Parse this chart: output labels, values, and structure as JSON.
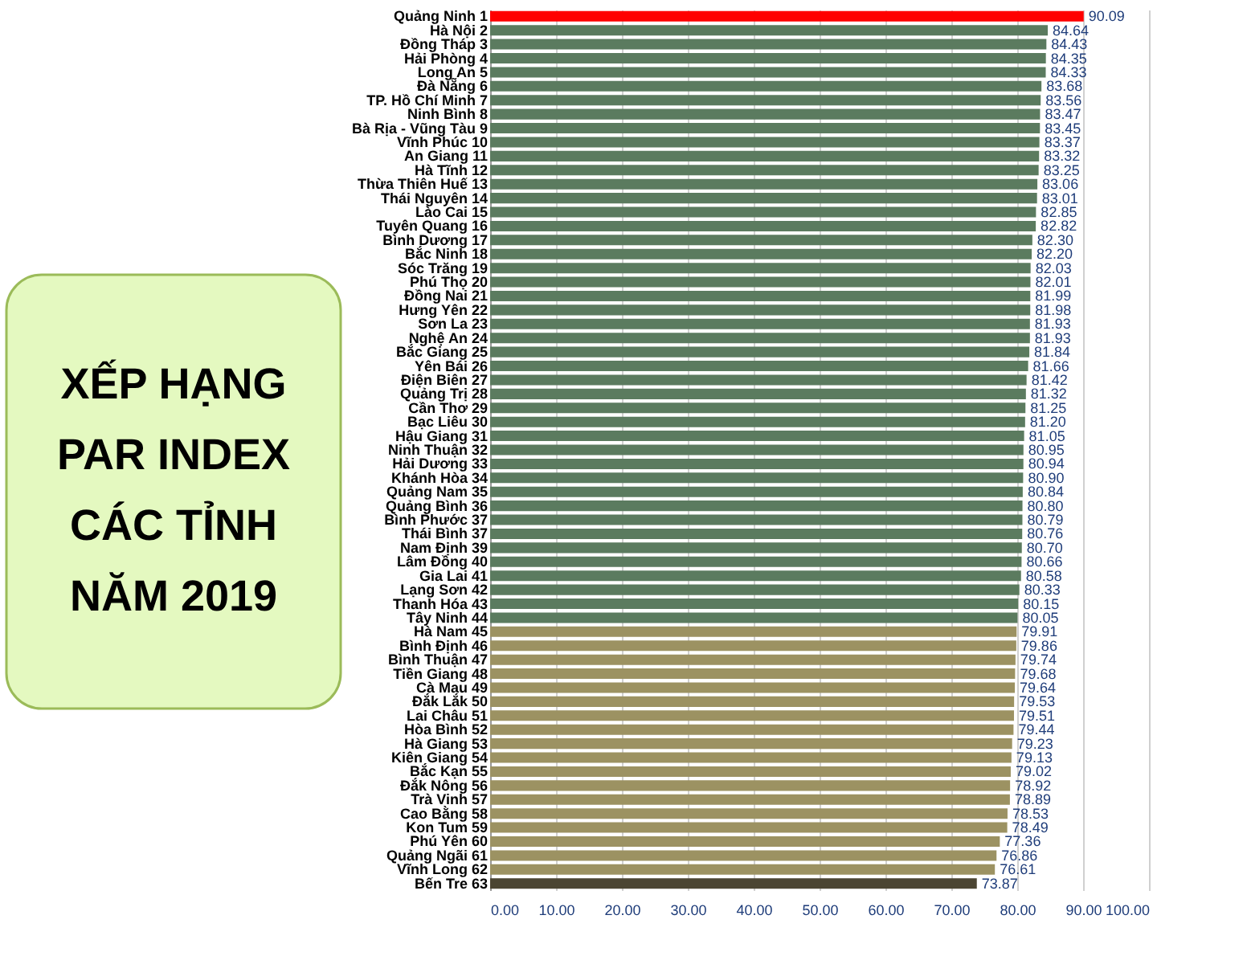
{
  "chart_data": {
    "type": "bar",
    "orientation": "horizontal",
    "title": "XẾP HẠNG\nPAR INDEX\nCÁC TỈNH\nNĂM 2019",
    "categories": [
      "Quảng Ninh 1",
      "Hà Nội 2",
      "Đồng Tháp 3",
      "Hải Phòng 4",
      "Long An 5",
      "Đà Nẵng 6",
      "TP. Hồ Chí Minh 7",
      "Ninh Bình 8",
      "Bà Rịa - Vũng Tàu 9",
      "Vĩnh Phúc 10",
      "An Giang 11",
      "Hà Tĩnh 12",
      "Thừa Thiên Huế 13",
      "Thái Nguyên 14",
      "Lào Cai 15",
      "Tuyên Quang 16",
      "Bình Dương 17",
      "Bắc Ninh 18",
      "Sóc Trăng 19",
      "Phú Thọ 20",
      "Đồng Nai 21",
      "Hưng Yên 22",
      "Sơn La 23",
      "Nghệ An 24",
      "Bắc Giang 25",
      "Yên Bái 26",
      "Điện Biên 27",
      "Quảng Trị 28",
      "Cần Thơ 29",
      "Bạc Liêu 30",
      "Hậu Giang 31",
      "Ninh Thuận 32",
      "Hải Dương 33",
      "Khánh Hòa 34",
      "Quảng Nam 35",
      "Quảng Bình 36",
      "Bình Phước 37",
      "Thái Bình 37",
      "Nam Định 39",
      "Lâm Đồng 40",
      "Gia Lai 41",
      "Lạng Sơn 42",
      "Thanh Hóa 43",
      "Tây Ninh 44",
      "Hà Nam 45",
      "Bình Định 46",
      "Bình Thuận 47",
      "Tiền Giang 48",
      "Cà Mau 49",
      "Đắk Lắk 50",
      "Lai Châu 51",
      "Hòa Bình 52",
      "Hà Giang 53",
      "Kiên Giang 54",
      "Bắc Kạn 55",
      "Đắk Nông 56",
      "Trà Vinh 57",
      "Cao Bằng 58",
      "Kon Tum 59",
      "Phú Yên 60",
      "Quảng Ngãi 61",
      "Vĩnh Long 62",
      "Bến Tre 63"
    ],
    "values": [
      90.09,
      84.64,
      84.43,
      84.35,
      84.33,
      83.68,
      83.56,
      83.47,
      83.45,
      83.37,
      83.32,
      83.25,
      83.06,
      83.01,
      82.85,
      82.82,
      82.3,
      82.2,
      82.03,
      82.01,
      81.99,
      81.98,
      81.93,
      81.93,
      81.84,
      81.66,
      81.42,
      81.32,
      81.25,
      81.2,
      81.05,
      80.95,
      80.94,
      80.9,
      80.84,
      80.8,
      80.79,
      80.76,
      80.7,
      80.66,
      80.58,
      80.33,
      80.15,
      80.05,
      79.91,
      79.86,
      79.74,
      79.68,
      79.64,
      79.53,
      79.51,
      79.44,
      79.23,
      79.13,
      79.02,
      78.92,
      78.89,
      78.53,
      78.49,
      77.36,
      76.86,
      76.61,
      73.87
    ],
    "value_labels": [
      "90.09",
      "84.64",
      "84.43",
      "84.35",
      "84.33",
      "83.68",
      "83.56",
      "83.47",
      "83.45",
      "83.37",
      "83.32",
      "83.25",
      "83.06",
      "83.01",
      "82.85",
      "82.82",
      "82.30",
      "82.20",
      "82.03",
      "82.01",
      "81.99",
      "81.98",
      "81.93",
      "81.93",
      "81.84",
      "81.66",
      "81.42",
      "81.32",
      "81.25",
      "81.20",
      "81.05",
      "80.95",
      "80.94",
      "80.90",
      "80.84",
      "80.80",
      "80.79",
      "80.76",
      "80.70",
      "80.66",
      "80.58",
      "80.33",
      "80.15",
      "80.05",
      "79.91",
      "79.86",
      "79.74",
      "79.68",
      "79.64",
      "79.53",
      "79.51",
      "79.44",
      "79.23",
      "79.13",
      "79.02",
      "78.92",
      "78.89",
      "78.53",
      "78.49",
      "77.36",
      "76.86",
      "76.61",
      "73.87"
    ],
    "colors": [
      "#ff0000",
      "#5b7b5f",
      "#5b7b5f",
      "#5b7b5f",
      "#5b7b5f",
      "#5b7b5f",
      "#5b7b5f",
      "#5b7b5f",
      "#5b7b5f",
      "#5b7b5f",
      "#5b7b5f",
      "#5b7b5f",
      "#5b7b5f",
      "#5b7b5f",
      "#5b7b5f",
      "#5b7b5f",
      "#5b7b5f",
      "#5b7b5f",
      "#5b7b5f",
      "#5b7b5f",
      "#5b7b5f",
      "#5b7b5f",
      "#5b7b5f",
      "#5b7b5f",
      "#5b7b5f",
      "#5b7b5f",
      "#5b7b5f",
      "#5b7b5f",
      "#5b7b5f",
      "#5b7b5f",
      "#5b7b5f",
      "#5b7b5f",
      "#5b7b5f",
      "#5b7b5f",
      "#5b7b5f",
      "#5b7b5f",
      "#5b7b5f",
      "#5b7b5f",
      "#5b7b5f",
      "#5b7b5f",
      "#5b7b5f",
      "#5b7b5f",
      "#5b7b5f",
      "#5b7b5f",
      "#9c9262",
      "#9c9262",
      "#9c9262",
      "#9c9262",
      "#9c9262",
      "#9c9262",
      "#9c9262",
      "#9c9262",
      "#9c9262",
      "#9c9262",
      "#9c9262",
      "#9c9262",
      "#9c9262",
      "#9c9262",
      "#9c9262",
      "#9c9262",
      "#9c9262",
      "#9c9262",
      "#4b4532"
    ],
    "xlim": [
      0,
      100
    ],
    "xticks": [
      {
        "value": 0,
        "label": "0.00"
      },
      {
        "value": 10,
        "label": "10.00"
      },
      {
        "value": 20,
        "label": "20.00"
      },
      {
        "value": 30,
        "label": "30.00"
      },
      {
        "value": 40,
        "label": "40.00"
      },
      {
        "value": 50,
        "label": "50.00"
      },
      {
        "value": 60,
        "label": "60.00"
      },
      {
        "value": 70,
        "label": "70.00"
      },
      {
        "value": 80,
        "label": "80.00"
      },
      {
        "value": 90,
        "label": "90.00"
      },
      {
        "value": 100,
        "label": "100.00"
      }
    ],
    "grid": "x"
  }
}
